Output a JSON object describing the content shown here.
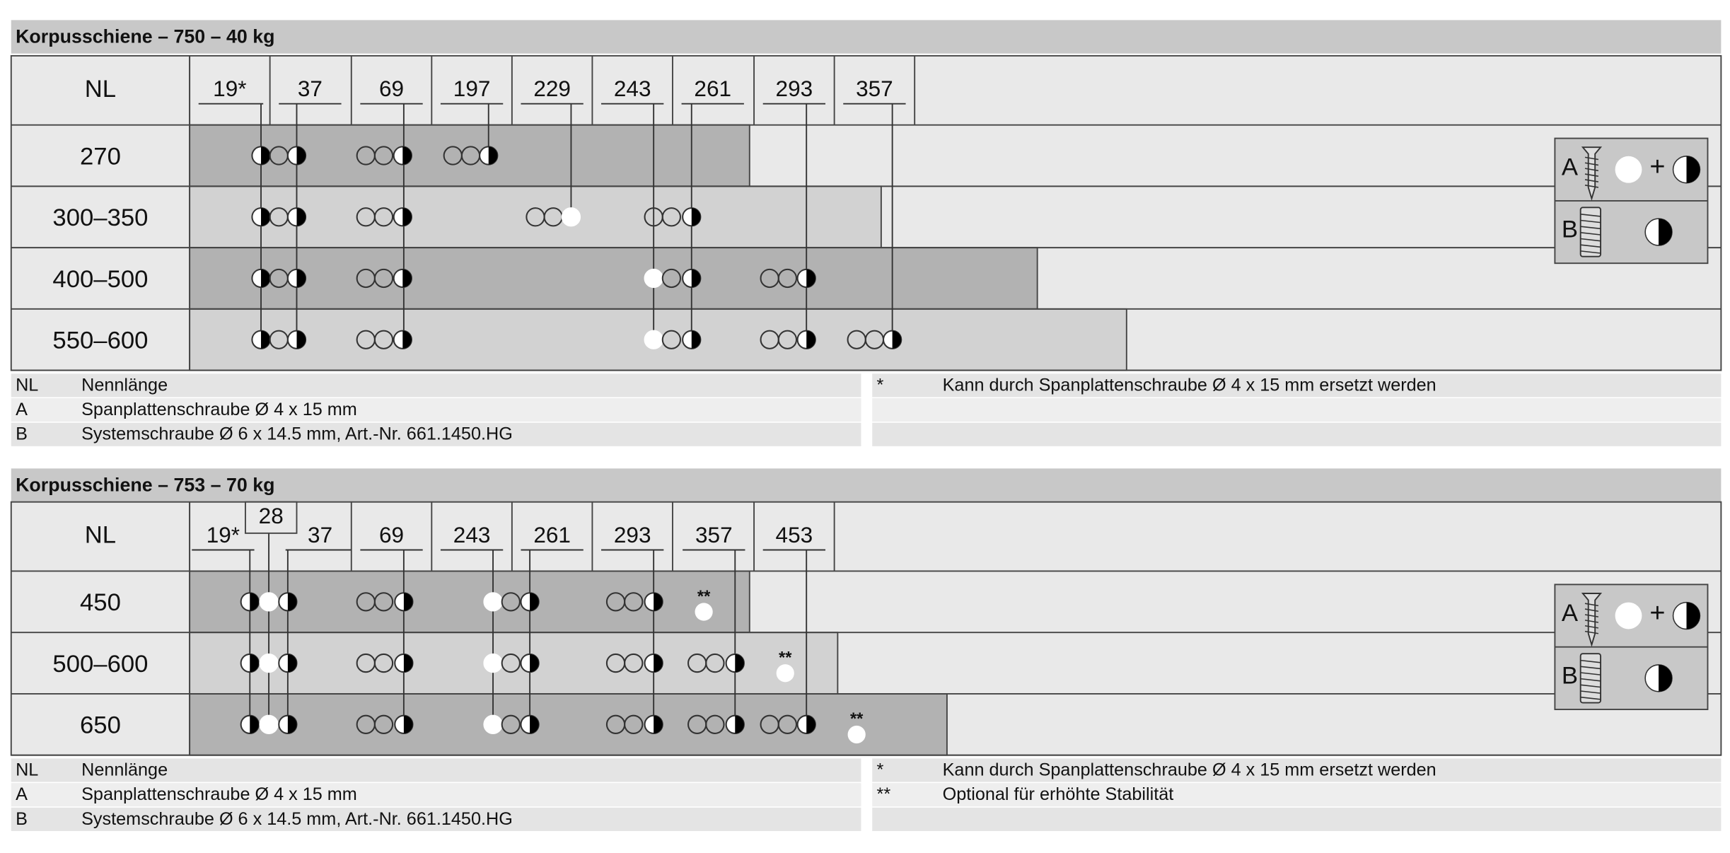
{
  "sections": [
    {
      "title": "Korpusschiene – 750 – 40 kg",
      "header": "NL",
      "columns": [
        "19*",
        "37",
        "69",
        "197",
        "229",
        "243",
        "261",
        "293",
        "357"
      ],
      "rows": [
        "270",
        "300–350",
        "400–500",
        "550–600"
      ],
      "legend_box": {
        "a": "A",
        "plus": "+",
        "b": "B"
      },
      "optional_marker": [],
      "notes_left": [
        [
          "NL",
          "Nennlänge"
        ],
        [
          "A",
          "Spanplattenschraube Ø 4 x 15 mm"
        ],
        [
          "B",
          "Systemschraube Ø 6 x 14.5 mm, Art.-Nr. 661.1450.HG"
        ]
      ],
      "notes_right": [
        [
          "*",
          "Kann durch Spanplattenschraube Ø 4 x 15 mm ersetzt werden"
        ]
      ]
    },
    {
      "title": "Korpusschiene – 753 – 70 kg",
      "header": "NL",
      "columns": [
        "19*",
        "28",
        "37",
        "69",
        "243",
        "261",
        "293",
        "357",
        "453"
      ],
      "rows": [
        "450",
        "500–600",
        "650"
      ],
      "legend_box": {
        "a": "A",
        "plus": "+",
        "b": "B"
      },
      "optional_marker": [
        "**",
        "**",
        "**"
      ],
      "notes_left": [
        [
          "NL",
          "Nennlänge"
        ],
        [
          "A",
          "Spanplattenschraube Ø 4 x 15 mm"
        ],
        [
          "B",
          "Systemschraube Ø 6 x 14.5 mm, Art.-Nr. 661.1450.HG"
        ]
      ],
      "notes_right": [
        [
          "*",
          "Kann durch Spanplattenschraube Ø 4 x 15 mm ersetzt werden"
        ],
        [
          "**",
          "Optional für erhöhte Stabilität"
        ]
      ]
    }
  ]
}
